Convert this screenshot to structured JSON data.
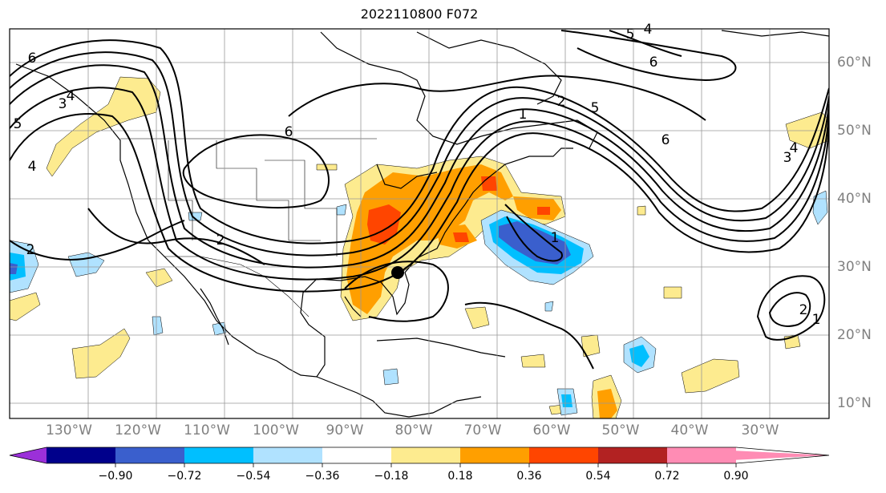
{
  "title": "2022110800 F072",
  "lon_labels": [
    "130°W",
    "120°W",
    "110°W",
    "100°W",
    "90°W",
    "80°W",
    "70°W",
    "60°W",
    "50°W",
    "40°W",
    "30°W"
  ],
  "lat_labels": [
    "60°N",
    "50°N",
    "40°N",
    "30°N",
    "20°N",
    "10°N"
  ],
  "colorbar": {
    "ticks": [
      "−0.90",
      "−0.72",
      "−0.54",
      "−0.36",
      "−0.18",
      "0.18",
      "0.36",
      "0.54",
      "0.72",
      "0.90"
    ],
    "colors": [
      "#9b30d9",
      "#00008b",
      "#3a5fcd",
      "#00bfff",
      "#b0e2ff",
      "#ffffff",
      "#fdeb8f",
      "#ff9f00",
      "#ff4500",
      "#b22222",
      "#ff8cb4"
    ]
  },
  "contour_labels": [
    "6",
    "5",
    "4",
    "3",
    "4",
    "6",
    "2",
    "2",
    "1",
    "2",
    "5",
    "6",
    "3",
    "4",
    "1",
    "1",
    "2",
    "5",
    "4",
    "6"
  ],
  "marker": "storm-center"
}
